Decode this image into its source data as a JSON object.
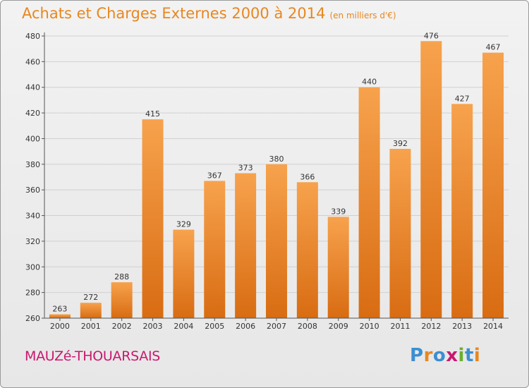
{
  "title": "Achats et Charges Externes 2000 à 2014",
  "unit": "(en milliers d'€)",
  "commune": "MAUZé-THOUARSAIS",
  "logo": "Proxiti",
  "colors": {
    "title": "#e8871f",
    "commune": "#c9186f",
    "bar_top": "#f7a24d",
    "bar_bottom": "#d86c12",
    "grid": "#d0d0d0",
    "logo_letters": [
      "#3b8fd0",
      "#e8871f",
      "#3b8fd0",
      "#c9186f",
      "#6cae2f",
      "#3b8fd0",
      "#e8871f"
    ]
  },
  "chart_data": {
    "type": "bar",
    "categories": [
      "2000",
      "2001",
      "2002",
      "2003",
      "2004",
      "2005",
      "2006",
      "2007",
      "2008",
      "2009",
      "2010",
      "2011",
      "2012",
      "2013",
      "2014"
    ],
    "values": [
      263,
      272,
      288,
      415,
      329,
      367,
      373,
      380,
      366,
      339,
      440,
      392,
      476,
      427,
      467
    ],
    "ylim": [
      260,
      480
    ],
    "yticks": [
      260,
      280,
      300,
      320,
      340,
      360,
      380,
      400,
      420,
      440,
      460,
      480
    ],
    "grid": true,
    "xlabel": "",
    "ylabel": ""
  }
}
